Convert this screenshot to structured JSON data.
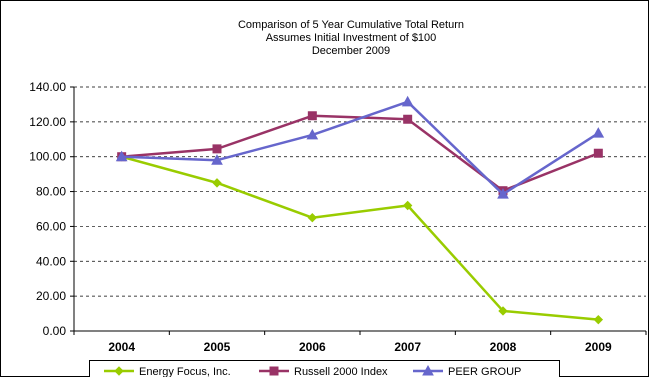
{
  "chart_data": {
    "type": "line",
    "title": [
      "Comparison of 5 Year Cumulative Total Return",
      "Assumes Initial Investment of $100",
      "December 2009"
    ],
    "xlabel": "",
    "ylabel": "",
    "categories": [
      "2004",
      "2005",
      "2006",
      "2007",
      "2008",
      "2009"
    ],
    "ylim": [
      0,
      140
    ],
    "yticks": [
      "0.00",
      "20.00",
      "40.00",
      "60.00",
      "80.00",
      "100.00",
      "120.00",
      "140.00"
    ],
    "grid": "horizontal dashed",
    "legend_position": "bottom",
    "series": [
      {
        "name": "Energy Focus, Inc.",
        "color": "#99cc00",
        "marker": "diamond",
        "values": [
          100,
          85,
          65,
          72,
          11.5,
          6.5
        ]
      },
      {
        "name": "Russell 2000 Index",
        "color": "#993366",
        "marker": "square",
        "values": [
          100,
          104.5,
          123.5,
          121.5,
          80.5,
          102
        ]
      },
      {
        "name": "PEER GROUP",
        "color": "#6666cc",
        "marker": "triangle",
        "values": [
          100,
          98,
          112.5,
          131.5,
          78.5,
          113.5
        ]
      }
    ]
  }
}
